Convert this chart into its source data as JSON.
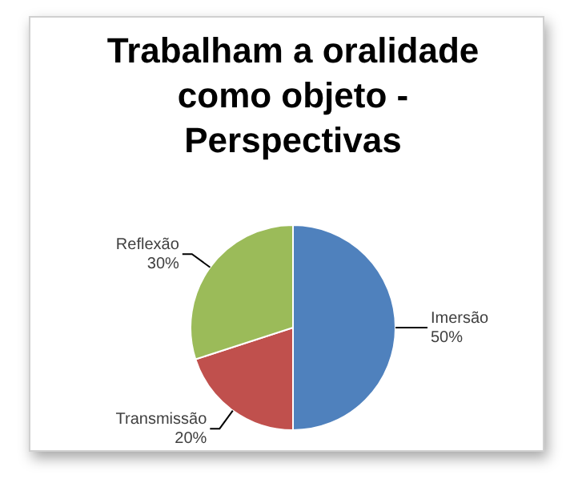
{
  "chart_data": {
    "type": "pie",
    "title": "Trabalham a oralidade como objeto - Perspectivas",
    "categories": [
      "Imersão",
      "Transmissão",
      "Reflexão"
    ],
    "values": [
      50,
      20,
      30
    ],
    "colors": [
      "#4f81bd",
      "#c0504d",
      "#9bbb59"
    ],
    "value_labels": [
      "50%",
      "20%",
      "30%"
    ],
    "legend": false
  }
}
